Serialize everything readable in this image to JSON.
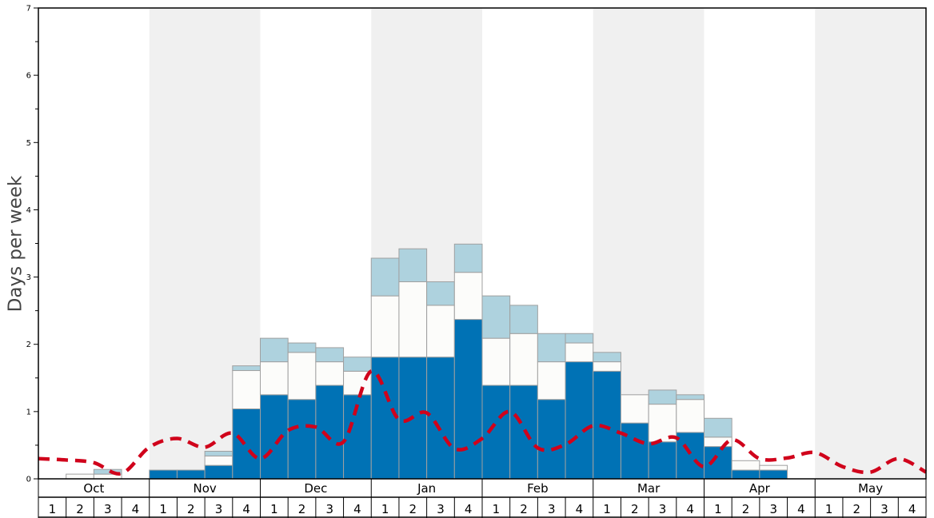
{
  "chart_data": {
    "type": "bar",
    "stacked": true,
    "title": "",
    "xlabel": "",
    "ylabel": "Days per week",
    "ylim": [
      0,
      7
    ],
    "yticks": [
      0,
      1,
      2,
      3,
      4,
      5,
      6,
      7
    ],
    "months": [
      "Oct",
      "Nov",
      "Dec",
      "Jan",
      "Feb",
      "Mar",
      "Apr",
      "May"
    ],
    "weeks": [
      "1",
      "2",
      "3",
      "4"
    ],
    "shaded_month_bands": [
      "Nov",
      "Jan",
      "Mar",
      "May"
    ],
    "series": [
      {
        "color": "#0072b5",
        "values": [
          0,
          0,
          0,
          0,
          0.13,
          0.13,
          0.2,
          1.04,
          1.25,
          1.18,
          1.39,
          1.25,
          1.81,
          1.81,
          1.81,
          2.37,
          1.39,
          1.39,
          1.18,
          1.74,
          1.6,
          0.83,
          0.55,
          0.69,
          0.48,
          0.13,
          0.13,
          0,
          0,
          0,
          0,
          0
        ]
      },
      {
        "color": "#fcfcfa",
        "values": [
          0,
          0.07,
          0.07,
          0,
          0,
          0,
          0.14,
          0.57,
          0.49,
          0.7,
          0.35,
          0.35,
          0.91,
          1.12,
          0.77,
          0.7,
          0.7,
          0.77,
          0.56,
          0.28,
          0.14,
          0.42,
          0.56,
          0.49,
          0.14,
          0.14,
          0.07,
          0,
          0,
          0,
          0,
          0
        ]
      },
      {
        "color": "#aed2de",
        "values": [
          0,
          0,
          0.07,
          0,
          0,
          0,
          0.07,
          0.07,
          0.35,
          0.14,
          0.21,
          0.21,
          0.56,
          0.49,
          0.35,
          0.42,
          0.63,
          0.42,
          0.42,
          0.14,
          0.14,
          0,
          0.21,
          0.07,
          0.28,
          0,
          0,
          0,
          0,
          0,
          0,
          0
        ]
      }
    ],
    "line": {
      "color": "#d0021b",
      "style": "dashed",
      "values": [
        0.3,
        0.28,
        0.24,
        0.08,
        0.47,
        0.6,
        0.47,
        0.68,
        0.3,
        0.72,
        0.77,
        0.55,
        1.6,
        0.88,
        0.98,
        0.45,
        0.6,
        1.0,
        0.46,
        0.51,
        0.79,
        0.68,
        0.52,
        0.61,
        0.18,
        0.58,
        0.3,
        0.31,
        0.39,
        0.18,
        0.1,
        0.3,
        0.1
      ]
    },
    "grid": false,
    "colors": {
      "band": "#f0f0f0",
      "bar_edge": "#a0a0a0",
      "axis": "#000000"
    }
  }
}
